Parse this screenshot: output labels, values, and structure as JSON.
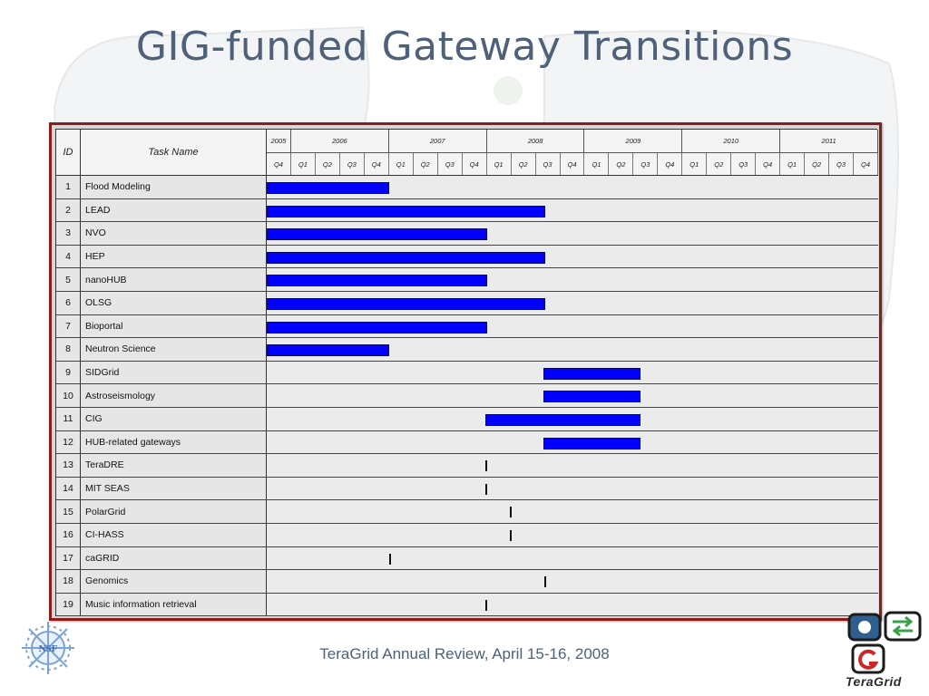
{
  "slide": {
    "title": "GIG-funded Gateway Transitions",
    "footer": "TeraGrid Annual Review, April 15-16, 2008",
    "brand_wordmark": "TeraGrid",
    "nsf_logo_text": "NSF"
  },
  "gantt": {
    "header": {
      "id": "ID",
      "task_name": "Task Name"
    },
    "years": [
      {
        "label": "2005",
        "quarters": [
          "Q4"
        ]
      },
      {
        "label": "2006",
        "quarters": [
          "Q1",
          "Q2",
          "Q3",
          "Q4"
        ]
      },
      {
        "label": "2007",
        "quarters": [
          "Q1",
          "Q2",
          "Q3",
          "Q4"
        ]
      },
      {
        "label": "2008",
        "quarters": [
          "Q1",
          "Q2",
          "Q3",
          "Q4"
        ]
      },
      {
        "label": "2009",
        "quarters": [
          "Q1",
          "Q2",
          "Q3",
          "Q4"
        ]
      },
      {
        "label": "2010",
        "quarters": [
          "Q1",
          "Q2",
          "Q3",
          "Q4"
        ]
      },
      {
        "label": "2011",
        "quarters": [
          "Q1",
          "Q2",
          "Q3",
          "Q4"
        ]
      }
    ],
    "tasks": [
      {
        "id": "1",
        "name": "Flood Modeling",
        "type": "bar",
        "start": 0,
        "end": 5
      },
      {
        "id": "2",
        "name": "LEAD",
        "type": "bar",
        "start": 0,
        "end": 11.4
      },
      {
        "id": "3",
        "name": "NVO",
        "type": "bar",
        "start": 0,
        "end": 9
      },
      {
        "id": "4",
        "name": "HEP",
        "type": "bar",
        "start": 0,
        "end": 11.4
      },
      {
        "id": "5",
        "name": "nanoHUB",
        "type": "bar",
        "start": 0,
        "end": 9
      },
      {
        "id": "6",
        "name": "OLSG",
        "type": "bar",
        "start": 0,
        "end": 11.4
      },
      {
        "id": "7",
        "name": "Bioportal",
        "type": "bar",
        "start": 0,
        "end": 9
      },
      {
        "id": "8",
        "name": "Neutron Science",
        "type": "bar",
        "start": 0,
        "end": 5
      },
      {
        "id": "9",
        "name": "SIDGrid",
        "type": "bar",
        "start": 11.3,
        "end": 15.3
      },
      {
        "id": "10",
        "name": "Astroseismology",
        "type": "bar",
        "start": 11.3,
        "end": 15.3
      },
      {
        "id": "11",
        "name": "CIG",
        "type": "bar",
        "start": 8.95,
        "end": 15.3
      },
      {
        "id": "12",
        "name": "HUB-related gateways",
        "type": "bar",
        "start": 11.3,
        "end": 15.3
      },
      {
        "id": "13",
        "name": "TeraDRE",
        "type": "milestone",
        "at": 8.95
      },
      {
        "id": "14",
        "name": "MIT SEAS",
        "type": "milestone",
        "at": 8.95
      },
      {
        "id": "15",
        "name": "PolarGrid",
        "type": "milestone",
        "at": 9.95
      },
      {
        "id": "16",
        "name": "CI-HASS",
        "type": "milestone",
        "at": 9.95
      },
      {
        "id": "17",
        "name": "caGRID",
        "type": "milestone",
        "at": 5
      },
      {
        "id": "18",
        "name": "Genomics",
        "type": "milestone",
        "at": 11.35
      },
      {
        "id": "19",
        "name": "Music information retrieval",
        "type": "milestone",
        "at": 8.95
      }
    ],
    "colors": {
      "bar": "#0000ff",
      "frame": "#8d1c1c",
      "title": "#4e6178"
    }
  }
}
